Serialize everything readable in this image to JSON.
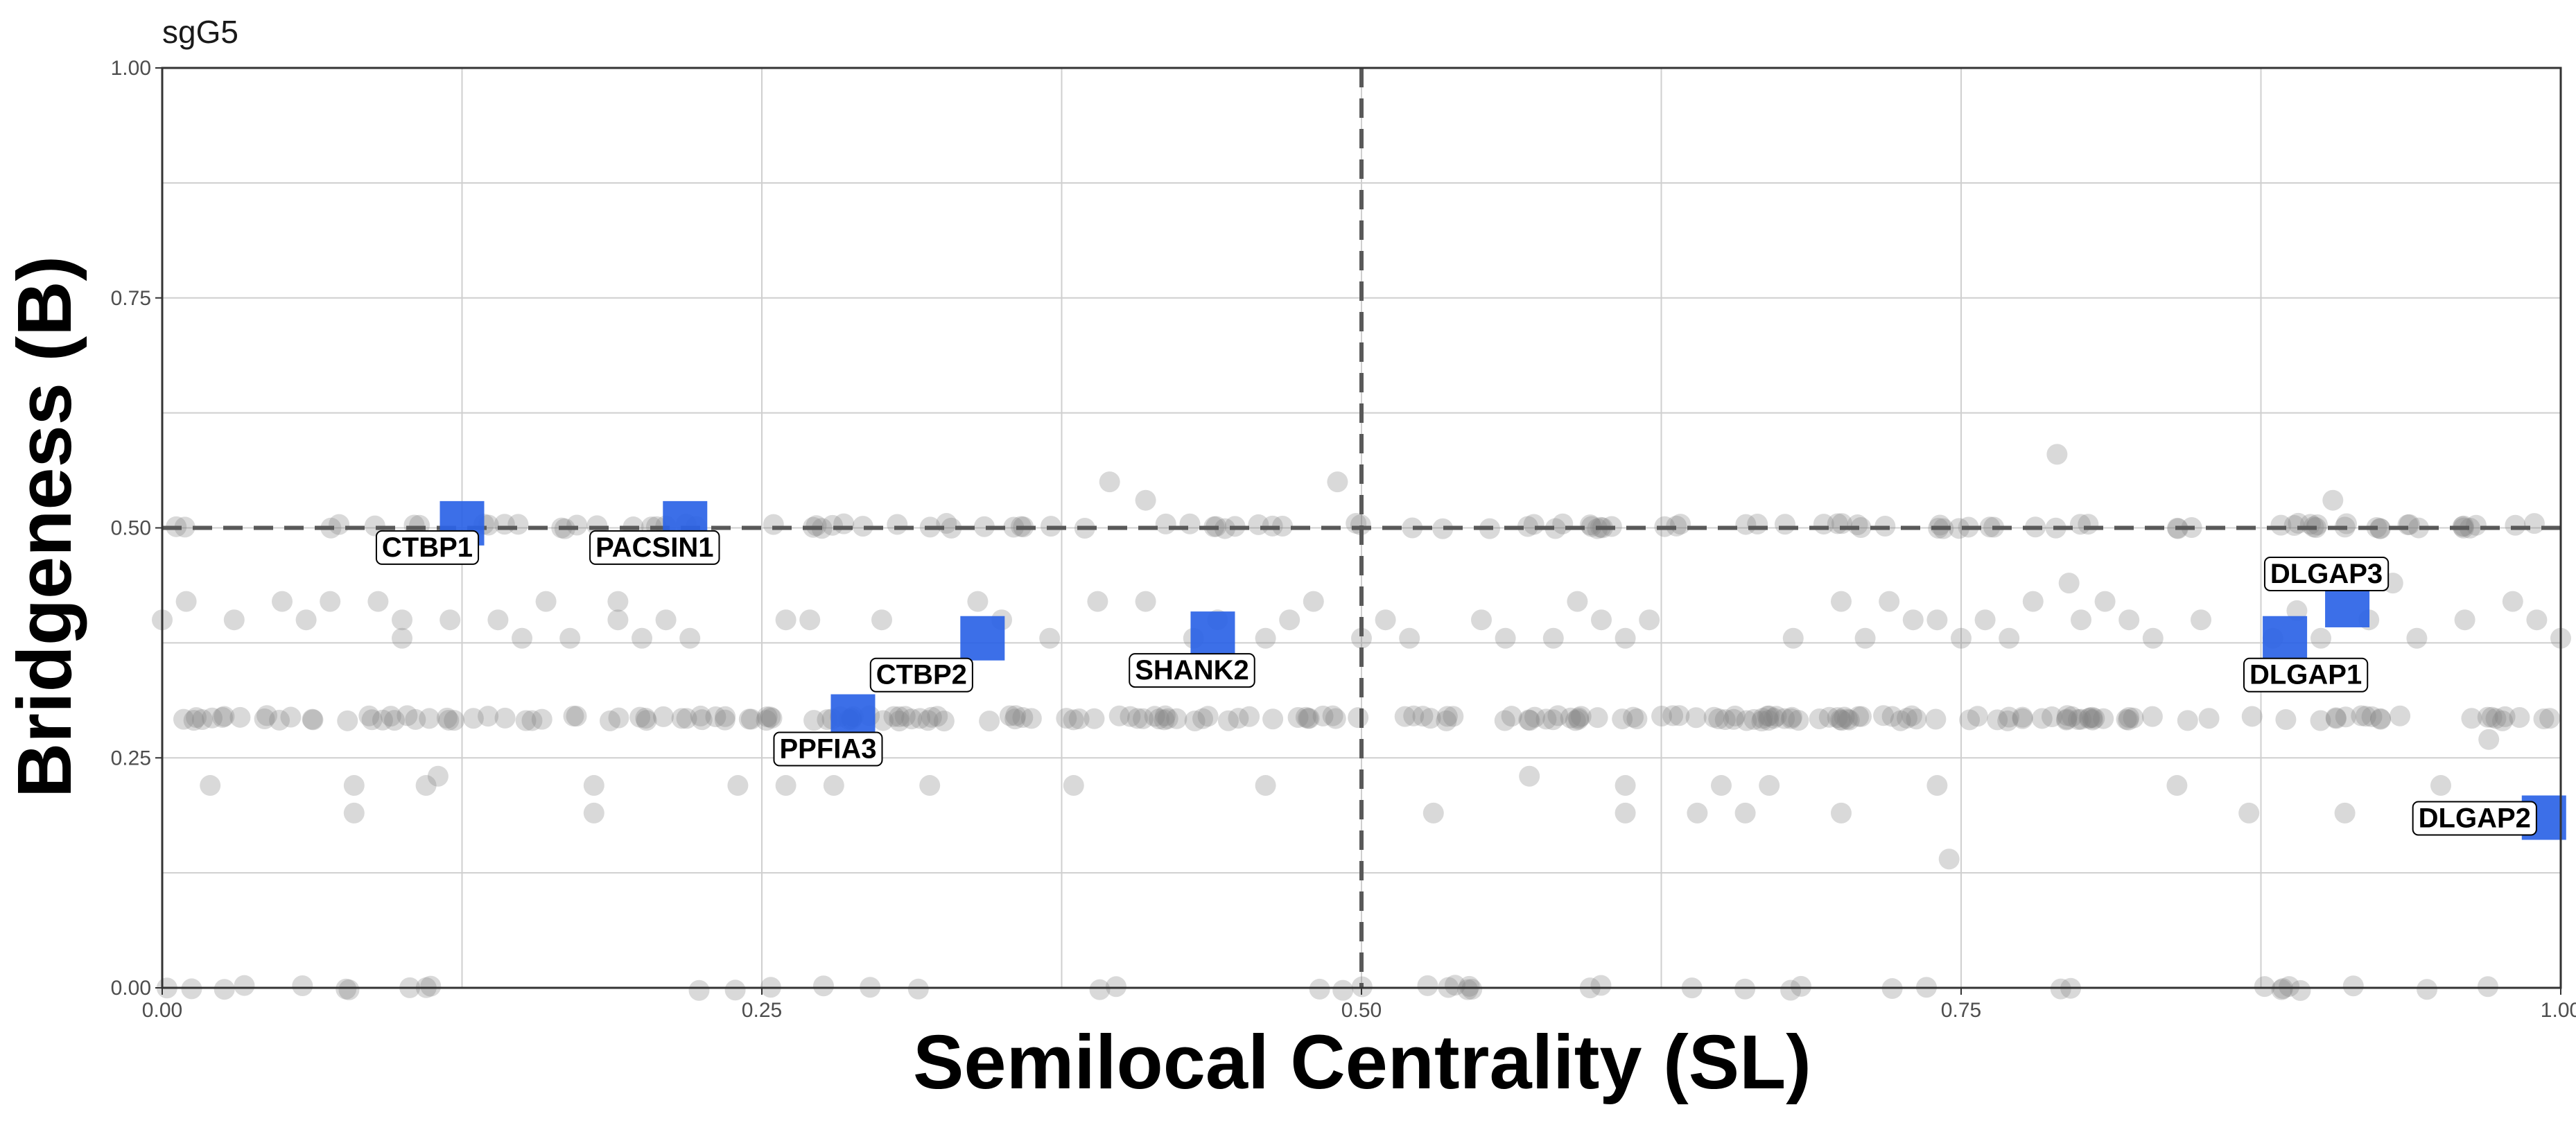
{
  "chart_data": {
    "type": "scatter",
    "title": "sgG5",
    "xlabel": "Semilocal Centrality (SL)",
    "ylabel": "Bridgeness (B)",
    "xlim": [
      0,
      1
    ],
    "ylim": [
      0,
      1
    ],
    "x_ticks": [
      "0.00",
      "0.25",
      "0.50",
      "0.75",
      "1.00"
    ],
    "y_ticks": [
      "0.00",
      "0.25",
      "0.50",
      "0.75",
      "1.00"
    ],
    "grid": true,
    "reference_lines": {
      "vertical_x": 0.5,
      "horizontal_y": 0.5,
      "style": "dashed"
    },
    "background_points_color": "#808080",
    "highlight_color": "#2B63E6",
    "background_points": [
      [
        0.0,
        0.4
      ],
      [
        0.01,
        0.42
      ],
      [
        0.02,
        0.22
      ],
      [
        0.03,
        0.4
      ],
      [
        0.05,
        0.42
      ],
      [
        0.06,
        0.4
      ],
      [
        0.07,
        0.42
      ],
      [
        0.08,
        0.22
      ],
      [
        0.08,
        0.19
      ],
      [
        0.09,
        0.42
      ],
      [
        0.1,
        0.4
      ],
      [
        0.1,
        0.38
      ],
      [
        0.11,
        0.22
      ],
      [
        0.12,
        0.4
      ],
      [
        0.115,
        0.23
      ],
      [
        0.14,
        0.4
      ],
      [
        0.15,
        0.38
      ],
      [
        0.16,
        0.42
      ],
      [
        0.17,
        0.38
      ],
      [
        0.18,
        0.22
      ],
      [
        0.18,
        0.19
      ],
      [
        0.19,
        0.42
      ],
      [
        0.19,
        0.4
      ],
      [
        0.2,
        0.38
      ],
      [
        0.21,
        0.4
      ],
      [
        0.22,
        0.38
      ],
      [
        0.24,
        0.22
      ],
      [
        0.26,
        0.4
      ],
      [
        0.26,
        0.22
      ],
      [
        0.27,
        0.4
      ],
      [
        0.28,
        0.22
      ],
      [
        0.3,
        0.4
      ],
      [
        0.32,
        0.22
      ],
      [
        0.34,
        0.42
      ],
      [
        0.35,
        0.4
      ],
      [
        0.37,
        0.38
      ],
      [
        0.38,
        0.22
      ],
      [
        0.39,
        0.42
      ],
      [
        0.395,
        0.55
      ],
      [
        0.41,
        0.53
      ],
      [
        0.41,
        0.42
      ],
      [
        0.43,
        0.38
      ],
      [
        0.44,
        0.4
      ],
      [
        0.46,
        0.38
      ],
      [
        0.46,
        0.22
      ],
      [
        0.47,
        0.4
      ],
      [
        0.48,
        0.42
      ],
      [
        0.49,
        0.55
      ],
      [
        0.5,
        0.38
      ],
      [
        0.51,
        0.4
      ],
      [
        0.52,
        0.38
      ],
      [
        0.53,
        0.19
      ],
      [
        0.55,
        0.4
      ],
      [
        0.56,
        0.38
      ],
      [
        0.57,
        0.23
      ],
      [
        0.58,
        0.38
      ],
      [
        0.59,
        0.42
      ],
      [
        0.6,
        0.4
      ],
      [
        0.61,
        0.38
      ],
      [
        0.61,
        0.22
      ],
      [
        0.61,
        0.19
      ],
      [
        0.62,
        0.4
      ],
      [
        0.64,
        0.19
      ],
      [
        0.65,
        0.22
      ],
      [
        0.66,
        0.19
      ],
      [
        0.67,
        0.22
      ],
      [
        0.68,
        0.38
      ],
      [
        0.7,
        0.42
      ],
      [
        0.7,
        0.19
      ],
      [
        0.71,
        0.38
      ],
      [
        0.72,
        0.42
      ],
      [
        0.73,
        0.4
      ],
      [
        0.74,
        0.4
      ],
      [
        0.74,
        0.22
      ],
      [
        0.745,
        0.14
      ],
      [
        0.75,
        0.38
      ],
      [
        0.76,
        0.4
      ],
      [
        0.77,
        0.38
      ],
      [
        0.78,
        0.42
      ],
      [
        0.79,
        0.58
      ],
      [
        0.795,
        0.44
      ],
      [
        0.8,
        0.4
      ],
      [
        0.81,
        0.42
      ],
      [
        0.82,
        0.4
      ],
      [
        0.83,
        0.38
      ],
      [
        0.84,
        0.22
      ],
      [
        0.85,
        0.4
      ],
      [
        0.87,
        0.19
      ],
      [
        0.88,
        0.38
      ],
      [
        0.89,
        0.41
      ],
      [
        0.9,
        0.38
      ],
      [
        0.905,
        0.53
      ],
      [
        0.91,
        0.19
      ],
      [
        0.92,
        0.4
      ],
      [
        0.93,
        0.44
      ],
      [
        0.94,
        0.38
      ],
      [
        0.95,
        0.22
      ],
      [
        0.96,
        0.4
      ],
      [
        0.97,
        0.27
      ],
      [
        0.98,
        0.42
      ],
      [
        0.99,
        0.4
      ],
      [
        1.0,
        0.38
      ]
    ],
    "band_points": [
      {
        "y": 0.293,
        "x_min": 0.0,
        "x_max": 1.0,
        "count": 220
      },
      {
        "y": 0.502,
        "x_min": 0.0,
        "x_max": 1.0,
        "count": 110
      },
      {
        "y": 0.0,
        "x_min": 0.0,
        "x_max": 1.0,
        "count": 45
      }
    ],
    "highlighted_genes": [
      {
        "label": "CTBP1",
        "x": 0.125,
        "y": 0.505
      },
      {
        "label": "PACSIN1",
        "x": 0.218,
        "y": 0.505
      },
      {
        "label": "CTBP2",
        "x": 0.342,
        "y": 0.38
      },
      {
        "label": "SHANK2",
        "x": 0.438,
        "y": 0.385
      },
      {
        "label": "PPFIA3",
        "x": 0.288,
        "y": 0.295
      },
      {
        "label": "DLGAP3",
        "x": 0.911,
        "y": 0.416
      },
      {
        "label": "DLGAP1",
        "x": 0.885,
        "y": 0.38
      },
      {
        "label": "DLGAP2",
        "x": 0.993,
        "y": 0.185
      }
    ]
  }
}
